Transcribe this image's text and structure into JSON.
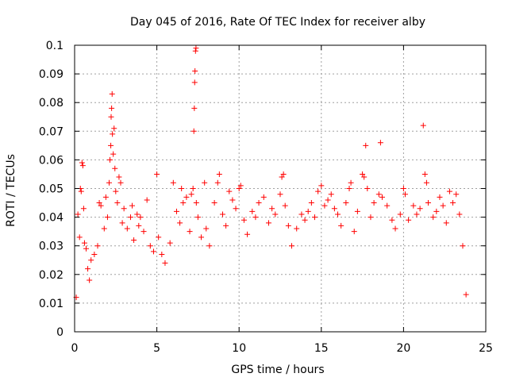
{
  "chart_data": {
    "type": "scatter",
    "title": "Day 045 of 2016, Rate Of TEC Index for receiver alby",
    "xlabel": "GPS time / hours",
    "ylabel": "ROTI / TECUs",
    "xlim": [
      0,
      25
    ],
    "ylim": [
      0,
      0.1
    ],
    "xticks": [
      0,
      5,
      10,
      15,
      20,
      25
    ],
    "yticks": [
      0,
      0.01,
      0.02,
      0.03,
      0.04,
      0.05,
      0.06,
      0.07,
      0.08,
      0.09,
      0.1
    ],
    "xtick_labels": [
      "0",
      "5",
      "10",
      "15",
      "20",
      "25"
    ],
    "ytick_labels": [
      "0",
      "0.01",
      "0.02",
      "0.03",
      "0.04",
      "0.05",
      "0.06",
      "0.07",
      "0.08",
      "0.09",
      "0.1"
    ],
    "grid": true,
    "marker": "+",
    "color": "#ff0000",
    "series": [
      {
        "name": "ROTI",
        "points": [
          [
            0.1,
            0.012
          ],
          [
            0.2,
            0.041
          ],
          [
            0.3,
            0.033
          ],
          [
            0.35,
            0.05
          ],
          [
            0.4,
            0.049
          ],
          [
            0.45,
            0.059
          ],
          [
            0.5,
            0.058
          ],
          [
            0.55,
            0.043
          ],
          [
            0.6,
            0.031
          ],
          [
            0.7,
            0.029
          ],
          [
            0.8,
            0.022
          ],
          [
            0.9,
            0.018
          ],
          [
            1.0,
            0.025
          ],
          [
            1.2,
            0.027
          ],
          [
            1.4,
            0.03
          ],
          [
            1.5,
            0.045
          ],
          [
            1.6,
            0.044
          ],
          [
            1.8,
            0.036
          ],
          [
            1.9,
            0.047
          ],
          [
            2.0,
            0.04
          ],
          [
            2.1,
            0.052
          ],
          [
            2.15,
            0.06
          ],
          [
            2.2,
            0.065
          ],
          [
            2.22,
            0.075
          ],
          [
            2.25,
            0.078
          ],
          [
            2.28,
            0.083
          ],
          [
            2.3,
            0.069
          ],
          [
            2.35,
            0.062
          ],
          [
            2.4,
            0.071
          ],
          [
            2.45,
            0.057
          ],
          [
            2.5,
            0.049
          ],
          [
            2.6,
            0.045
          ],
          [
            2.7,
            0.054
          ],
          [
            2.8,
            0.052
          ],
          [
            2.9,
            0.038
          ],
          [
            3.0,
            0.043
          ],
          [
            3.2,
            0.036
          ],
          [
            3.4,
            0.04
          ],
          [
            3.5,
            0.044
          ],
          [
            3.6,
            0.032
          ],
          [
            3.8,
            0.041
          ],
          [
            3.9,
            0.037
          ],
          [
            4.0,
            0.04
          ],
          [
            4.2,
            0.035
          ],
          [
            4.4,
            0.046
          ],
          [
            4.6,
            0.03
          ],
          [
            4.8,
            0.028
          ],
          [
            5.0,
            0.055
          ],
          [
            5.1,
            0.033
          ],
          [
            5.3,
            0.027
          ],
          [
            5.5,
            0.024
          ],
          [
            5.8,
            0.031
          ],
          [
            6.0,
            0.052
          ],
          [
            6.2,
            0.042
          ],
          [
            6.4,
            0.038
          ],
          [
            6.5,
            0.05
          ],
          [
            6.6,
            0.045
          ],
          [
            6.8,
            0.047
          ],
          [
            7.0,
            0.035
          ],
          [
            7.1,
            0.048
          ],
          [
            7.2,
            0.05
          ],
          [
            7.25,
            0.07
          ],
          [
            7.28,
            0.078
          ],
          [
            7.3,
            0.087
          ],
          [
            7.32,
            0.091
          ],
          [
            7.35,
            0.098
          ],
          [
            7.38,
            0.099
          ],
          [
            7.4,
            0.045
          ],
          [
            7.5,
            0.04
          ],
          [
            7.7,
            0.033
          ],
          [
            7.9,
            0.052
          ],
          [
            8.0,
            0.036
          ],
          [
            8.2,
            0.03
          ],
          [
            8.5,
            0.045
          ],
          [
            8.7,
            0.052
          ],
          [
            8.8,
            0.055
          ],
          [
            9.0,
            0.041
          ],
          [
            9.2,
            0.037
          ],
          [
            9.4,
            0.049
          ],
          [
            9.6,
            0.046
          ],
          [
            9.8,
            0.043
          ],
          [
            10.0,
            0.05
          ],
          [
            10.1,
            0.051
          ],
          [
            10.3,
            0.039
          ],
          [
            10.5,
            0.034
          ],
          [
            10.8,
            0.042
          ],
          [
            11.0,
            0.04
          ],
          [
            11.2,
            0.045
          ],
          [
            11.5,
            0.047
          ],
          [
            11.8,
            0.038
          ],
          [
            12.0,
            0.043
          ],
          [
            12.2,
            0.041
          ],
          [
            12.5,
            0.048
          ],
          [
            12.6,
            0.054
          ],
          [
            12.7,
            0.055
          ],
          [
            12.8,
            0.044
          ],
          [
            13.0,
            0.037
          ],
          [
            13.2,
            0.03
          ],
          [
            13.5,
            0.036
          ],
          [
            13.8,
            0.041
          ],
          [
            14.0,
            0.039
          ],
          [
            14.2,
            0.042
          ],
          [
            14.4,
            0.045
          ],
          [
            14.6,
            0.04
          ],
          [
            14.8,
            0.049
          ],
          [
            15.0,
            0.051
          ],
          [
            15.2,
            0.044
          ],
          [
            15.4,
            0.046
          ],
          [
            15.6,
            0.048
          ],
          [
            15.8,
            0.043
          ],
          [
            16.0,
            0.041
          ],
          [
            16.2,
            0.037
          ],
          [
            16.5,
            0.045
          ],
          [
            16.7,
            0.05
          ],
          [
            16.8,
            0.052
          ],
          [
            17.0,
            0.035
          ],
          [
            17.2,
            0.042
          ],
          [
            17.5,
            0.055
          ],
          [
            17.6,
            0.054
          ],
          [
            17.7,
            0.065
          ],
          [
            17.8,
            0.05
          ],
          [
            18.0,
            0.04
          ],
          [
            18.2,
            0.045
          ],
          [
            18.5,
            0.048
          ],
          [
            18.6,
            0.066
          ],
          [
            18.7,
            0.047
          ],
          [
            19.0,
            0.044
          ],
          [
            19.3,
            0.039
          ],
          [
            19.5,
            0.036
          ],
          [
            19.8,
            0.041
          ],
          [
            20.0,
            0.05
          ],
          [
            20.1,
            0.048
          ],
          [
            20.3,
            0.039
          ],
          [
            20.6,
            0.044
          ],
          [
            20.8,
            0.041
          ],
          [
            21.0,
            0.043
          ],
          [
            21.2,
            0.072
          ],
          [
            21.3,
            0.055
          ],
          [
            21.4,
            0.052
          ],
          [
            21.5,
            0.045
          ],
          [
            21.8,
            0.04
          ],
          [
            22.0,
            0.042
          ],
          [
            22.2,
            0.047
          ],
          [
            22.4,
            0.044
          ],
          [
            22.6,
            0.038
          ],
          [
            22.8,
            0.049
          ],
          [
            23.0,
            0.045
          ],
          [
            23.2,
            0.048
          ],
          [
            23.4,
            0.041
          ],
          [
            23.6,
            0.03
          ],
          [
            23.8,
            0.013
          ]
        ]
      }
    ]
  }
}
